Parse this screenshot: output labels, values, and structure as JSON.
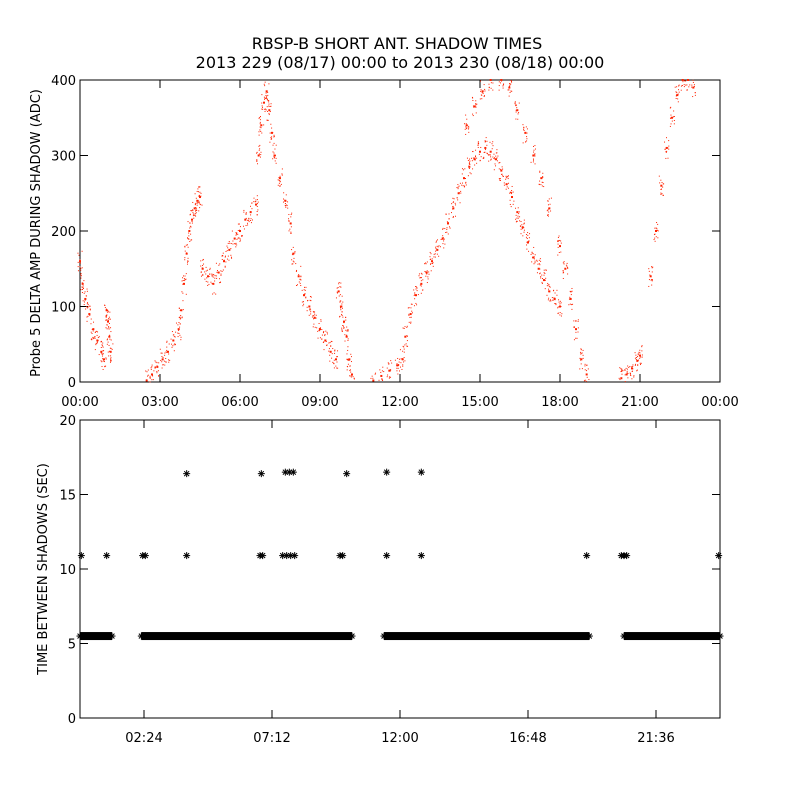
{
  "chart_data": [
    {
      "type": "scatter",
      "title_line1": "RBSP-B SHORT ANT. SHADOW TIMES",
      "title_line2": "2013 229 (08/17) 00:00 to 2013 230 (08/18) 00:00",
      "xlabel": "",
      "ylabel": "Probe 5 DELTA AMP DURING SHADOW (ADC)",
      "xlim": [
        0,
        24
      ],
      "ylim": [
        0,
        400
      ],
      "x_unit": "hours",
      "xtick_labels": [
        "00:00",
        "03:00",
        "06:00",
        "09:00",
        "12:00",
        "15:00",
        "18:00",
        "21:00",
        "00:00"
      ],
      "xtick_values": [
        0,
        3,
        6,
        9,
        12,
        15,
        18,
        21,
        24
      ],
      "ytick_labels": [
        "0",
        "100",
        "200",
        "300",
        "400"
      ],
      "ytick_values": [
        0,
        100,
        200,
        300,
        400
      ],
      "color": "#ff2200",
      "grid": false,
      "series": [
        {
          "points": [
            [
              0.0,
              160
            ],
            [
              0.1,
              130
            ],
            [
              0.2,
              110
            ],
            [
              0.35,
              90
            ],
            [
              0.5,
              70
            ],
            [
              0.65,
              55
            ],
            [
              0.8,
              40
            ],
            [
              0.9,
              30
            ],
            [
              1.0,
              95
            ],
            [
              1.05,
              80
            ],
            [
              1.1,
              60
            ],
            [
              1.15,
              40
            ],
            [
              2.5,
              2
            ],
            [
              2.7,
              10
            ],
            [
              2.9,
              20
            ],
            [
              3.1,
              30
            ],
            [
              3.3,
              40
            ],
            [
              3.5,
              55
            ],
            [
              3.7,
              70
            ],
            [
              3.8,
              95
            ],
            [
              3.9,
              130
            ],
            [
              4.0,
              170
            ],
            [
              4.1,
              200
            ],
            [
              4.2,
              215
            ],
            [
              4.3,
              230
            ],
            [
              4.4,
              240
            ],
            [
              4.5,
              245
            ],
            [
              4.6,
              150
            ],
            [
              4.8,
              140
            ],
            [
              5.0,
              130
            ],
            [
              5.2,
              145
            ],
            [
              5.4,
              160
            ],
            [
              5.6,
              175
            ],
            [
              5.8,
              190
            ],
            [
              6.0,
              200
            ],
            [
              6.2,
              215
            ],
            [
              6.4,
              225
            ],
            [
              6.6,
              235
            ],
            [
              6.7,
              300
            ],
            [
              6.8,
              340
            ],
            [
              6.9,
              370
            ],
            [
              7.0,
              385
            ],
            [
              7.1,
              360
            ],
            [
              7.2,
              330
            ],
            [
              7.3,
              300
            ],
            [
              7.5,
              270
            ],
            [
              7.7,
              240
            ],
            [
              7.9,
              210
            ],
            [
              8.0,
              170
            ],
            [
              8.2,
              140
            ],
            [
              8.4,
              115
            ],
            [
              8.6,
              100
            ],
            [
              8.8,
              85
            ],
            [
              9.0,
              70
            ],
            [
              9.2,
              55
            ],
            [
              9.4,
              40
            ],
            [
              9.6,
              30
            ],
            [
              9.7,
              120
            ],
            [
              9.8,
              100
            ],
            [
              9.9,
              80
            ],
            [
              10.0,
              60
            ],
            [
              10.1,
              30
            ],
            [
              10.2,
              10
            ],
            [
              11.0,
              2
            ],
            [
              11.3,
              8
            ],
            [
              11.6,
              15
            ],
            [
              11.9,
              22
            ],
            [
              12.1,
              30
            ],
            [
              12.2,
              60
            ],
            [
              12.4,
              90
            ],
            [
              12.6,
              115
            ],
            [
              12.8,
              130
            ],
            [
              13.0,
              145
            ],
            [
              13.2,
              160
            ],
            [
              13.4,
              175
            ],
            [
              13.6,
              190
            ],
            [
              13.8,
              210
            ],
            [
              14.0,
              230
            ],
            [
              14.2,
              250
            ],
            [
              14.4,
              270
            ],
            [
              14.6,
              285
            ],
            [
              14.8,
              295
            ],
            [
              15.0,
              305
            ],
            [
              15.2,
              310
            ],
            [
              15.4,
              305
            ],
            [
              15.6,
              295
            ],
            [
              15.8,
              280
            ],
            [
              16.0,
              262
            ],
            [
              16.2,
              245
            ],
            [
              16.4,
              225
            ],
            [
              16.6,
              205
            ],
            [
              16.8,
              185
            ],
            [
              17.0,
              165
            ],
            [
              17.2,
              150
            ],
            [
              17.4,
              135
            ],
            [
              17.6,
              120
            ],
            [
              17.8,
              110
            ],
            [
              18.0,
              100
            ],
            [
              14.5,
              340
            ],
            [
              14.8,
              365
            ],
            [
              15.1,
              385
            ],
            [
              15.4,
              400
            ],
            [
              15.8,
              400
            ],
            [
              16.1,
              390
            ],
            [
              16.4,
              360
            ],
            [
              16.7,
              330
            ],
            [
              17.0,
              300
            ],
            [
              17.3,
              270
            ],
            [
              17.6,
              230
            ],
            [
              18.0,
              180
            ],
            [
              18.2,
              150
            ],
            [
              18.4,
              110
            ],
            [
              18.6,
              70
            ],
            [
              18.8,
              30
            ],
            [
              19.0,
              10
            ],
            [
              20.3,
              5
            ],
            [
              20.5,
              10
            ],
            [
              20.7,
              18
            ],
            [
              20.9,
              28
            ],
            [
              21.0,
              35
            ],
            [
              21.4,
              140
            ],
            [
              21.6,
              200
            ],
            [
              21.8,
              260
            ],
            [
              22.0,
              310
            ],
            [
              22.2,
              350
            ],
            [
              22.4,
              380
            ],
            [
              22.6,
              400
            ],
            [
              22.8,
              400
            ],
            [
              23.0,
              390
            ]
          ]
        }
      ]
    },
    {
      "type": "scatter",
      "title": "",
      "xlabel": "",
      "ylabel": "TIME BETWEEN SHADOWS (SEC)",
      "xlim": [
        0,
        24
      ],
      "ylim": [
        0,
        20
      ],
      "x_unit": "hours",
      "xtick_labels": [
        "02:24",
        "07:12",
        "12:00",
        "16:48",
        "21:36"
      ],
      "xtick_values": [
        2.4,
        7.2,
        12.0,
        16.8,
        21.6
      ],
      "ytick_labels": [
        "0",
        "5",
        "10",
        "15",
        "20"
      ],
      "ytick_values": [
        0,
        5,
        10,
        15,
        20
      ],
      "color": "#000000",
      "marker": "asterisk",
      "grid": false,
      "baseline_segments": [
        {
          "y": 5.5,
          "x_start": 0.0,
          "x_end": 1.2
        },
        {
          "y": 5.5,
          "x_start": 2.3,
          "x_end": 10.2
        },
        {
          "y": 5.5,
          "x_start": 11.4,
          "x_end": 19.1
        },
        {
          "y": 5.5,
          "x_start": 20.4,
          "x_end": 24.0
        }
      ],
      "series": [
        {
          "points": [
            [
              0.05,
              10.9
            ],
            [
              1.0,
              10.9
            ],
            [
              2.35,
              10.9
            ],
            [
              2.45,
              10.9
            ],
            [
              4.0,
              10.9
            ],
            [
              4.0,
              16.4
            ],
            [
              6.75,
              10.9
            ],
            [
              6.8,
              16.4
            ],
            [
              6.85,
              10.9
            ],
            [
              7.6,
              10.9
            ],
            [
              7.7,
              16.5
            ],
            [
              7.75,
              10.9
            ],
            [
              7.85,
              16.5
            ],
            [
              7.9,
              10.9
            ],
            [
              8.0,
              16.5
            ],
            [
              8.05,
              10.9
            ],
            [
              9.75,
              10.9
            ],
            [
              9.85,
              10.9
            ],
            [
              10.0,
              16.4
            ],
            [
              11.5,
              10.9
            ],
            [
              11.5,
              16.5
            ],
            [
              12.8,
              10.9
            ],
            [
              12.8,
              16.5
            ],
            [
              19.0,
              10.9
            ],
            [
              20.3,
              10.9
            ],
            [
              20.4,
              10.9
            ],
            [
              20.5,
              10.9
            ],
            [
              23.95,
              10.9
            ]
          ]
        }
      ]
    }
  ]
}
